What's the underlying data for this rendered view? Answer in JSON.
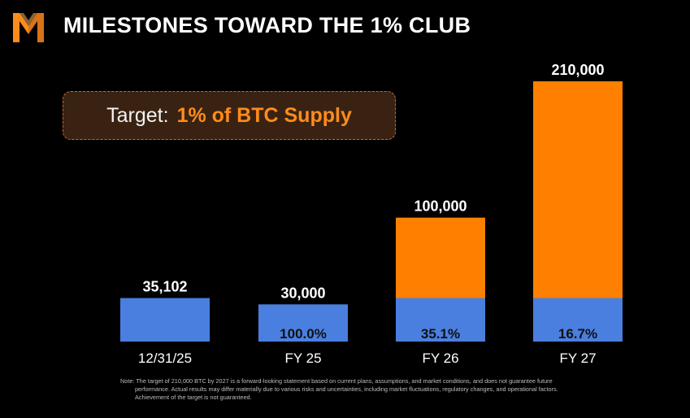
{
  "header": {
    "title": "MILESTONES TOWARD THE 1% CLUB"
  },
  "logo": {
    "icon": "m-logo-icon",
    "colors": [
      "#ff8c1a",
      "#d9731a",
      "#ffb35c"
    ]
  },
  "target": {
    "label": "Target:",
    "value": "1% of BTC Supply"
  },
  "colors": {
    "blue": "#4a7fe0",
    "orange": "#ff8000",
    "label": "#ffffff",
    "dark_label": "#111111"
  },
  "chart_data": {
    "type": "bar",
    "categories": [
      "12/31/25",
      "FY 25",
      "FY 26",
      "FY 27"
    ],
    "series": [
      {
        "values": [
          35102,
          30000,
          35102,
          35102
        ],
        "color": "#4a7fe0"
      },
      {
        "values": [
          0,
          0,
          64898,
          174898
        ],
        "color": "#ff8000"
      }
    ],
    "totals": [
      35102,
      30000,
      100000,
      210000
    ],
    "total_labels": [
      "35,102",
      "30,000",
      "100,000",
      "210,000"
    ],
    "percent_labels": [
      "",
      "100.0%",
      "35.1%",
      "16.7%"
    ],
    "ylim": [
      0,
      210000
    ],
    "grid": false,
    "legend": "none",
    "title": "",
    "xlabel": "",
    "ylabel": ""
  },
  "footnote": {
    "lines": [
      "Note: The target of 210,000 BTC by 2027 is a forward-looking statement based on current plans, assumptions, and market conditions, and does not guarantee future",
      "performance. Actual results may differ materially due to various risks and uncertainties, including market fluctuations, regulatory changes, and operational factors.",
      "Achievement of the target is not guaranteed."
    ]
  }
}
